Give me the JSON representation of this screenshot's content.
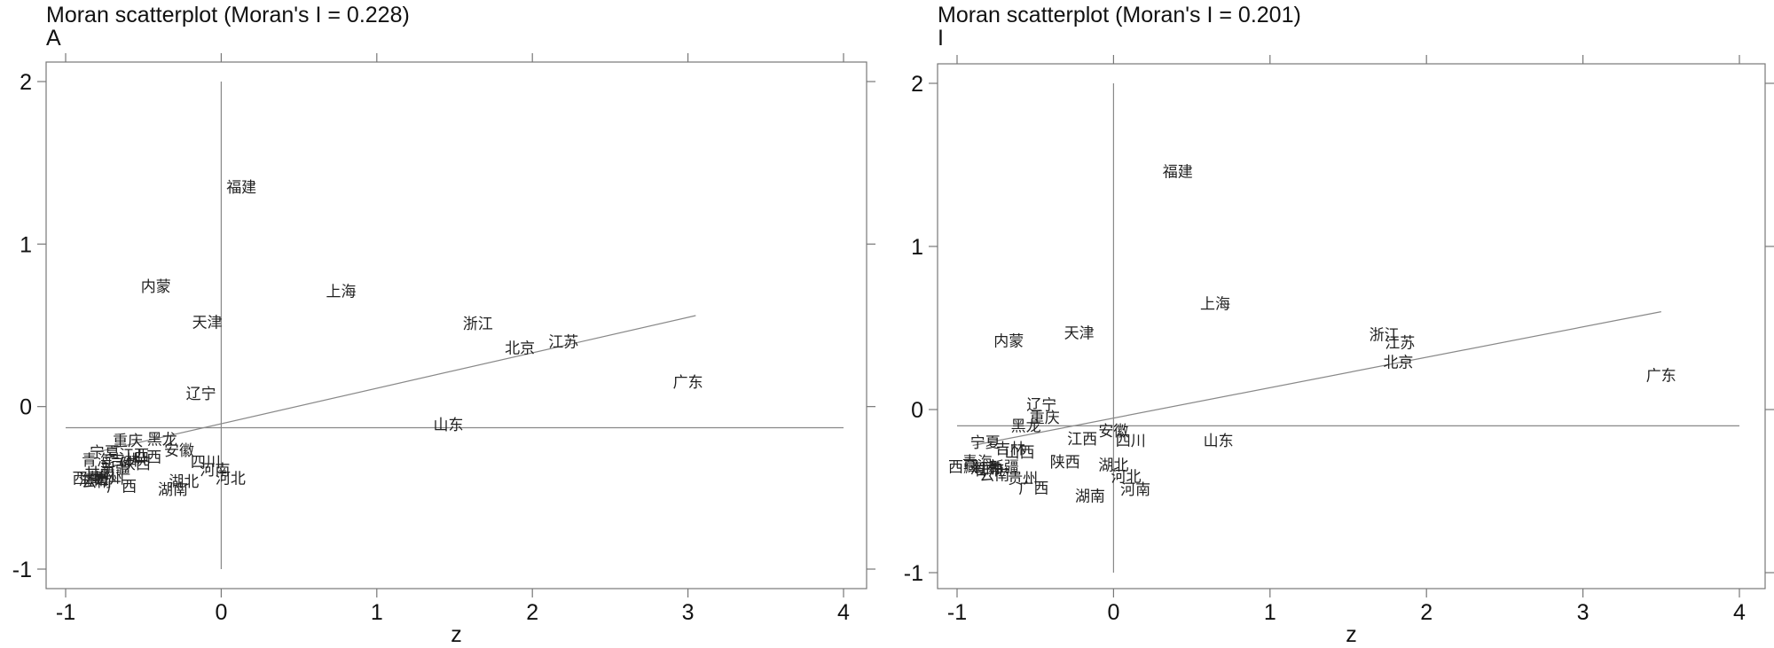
{
  "chart_data": [
    {
      "type": "scatter",
      "title": "Moran scatterplot (Moran's I = 0.228)",
      "subtitle": "A",
      "xlabel": "z",
      "ylabel": "",
      "xlim": [
        -1.1,
        4.1
      ],
      "ylim": [
        -1.1,
        2.1
      ],
      "xticks": [
        -1,
        0,
        1,
        2,
        3,
        4
      ],
      "yticks": [
        -1,
        0,
        1,
        2
      ],
      "grid": false,
      "reference_lines": {
        "x": 0,
        "y": -0.13
      },
      "fit_line": {
        "x": [
          -0.8,
          3.05
        ],
        "y": [
          -0.28,
          0.56
        ]
      },
      "points": [
        {
          "label": "福建",
          "x": 0.13,
          "y": 1.35
        },
        {
          "label": "内蒙",
          "x": -0.42,
          "y": 0.74
        },
        {
          "label": "上海",
          "x": 0.77,
          "y": 0.71
        },
        {
          "label": "天津",
          "x": -0.09,
          "y": 0.52
        },
        {
          "label": "浙江",
          "x": 1.65,
          "y": 0.51
        },
        {
          "label": "江苏",
          "x": 2.2,
          "y": 0.4
        },
        {
          "label": "北京",
          "x": 1.92,
          "y": 0.36
        },
        {
          "label": "广东",
          "x": 3.0,
          "y": 0.15
        },
        {
          "label": "辽宁",
          "x": -0.13,
          "y": 0.08
        },
        {
          "label": "山东",
          "x": 1.46,
          "y": -0.11
        },
        {
          "label": "重庆",
          "x": -0.6,
          "y": -0.21
        },
        {
          "label": "黑龙",
          "x": -0.38,
          "y": -0.2
        },
        {
          "label": "安徽",
          "x": -0.27,
          "y": -0.27
        },
        {
          "label": "四川",
          "x": -0.1,
          "y": -0.34
        },
        {
          "label": "河南",
          "x": -0.04,
          "y": -0.39
        },
        {
          "label": "河北",
          "x": 0.06,
          "y": -0.44
        },
        {
          "label": "湖北",
          "x": -0.24,
          "y": -0.46
        },
        {
          "label": "湖南",
          "x": -0.31,
          "y": -0.51
        },
        {
          "label": "宁夏",
          "x": -0.75,
          "y": -0.28
        },
        {
          "label": "青海",
          "x": -0.8,
          "y": -0.33
        },
        {
          "label": "山西",
          "x": -0.48,
          "y": -0.31
        },
        {
          "label": "吉林",
          "x": -0.62,
          "y": -0.33
        },
        {
          "label": "陕西",
          "x": -0.55,
          "y": -0.35
        },
        {
          "label": "新疆",
          "x": -0.68,
          "y": -0.38
        },
        {
          "label": "甘肃",
          "x": -0.78,
          "y": -0.41
        },
        {
          "label": "贵州",
          "x": -0.72,
          "y": -0.44
        },
        {
          "label": "云南",
          "x": -0.8,
          "y": -0.46
        },
        {
          "label": "广西",
          "x": -0.64,
          "y": -0.49
        },
        {
          "label": "海南",
          "x": -0.82,
          "y": -0.45
        },
        {
          "label": "西藏",
          "x": -0.86,
          "y": -0.44
        },
        {
          "label": "江西",
          "x": -0.56,
          "y": -0.3
        }
      ]
    },
    {
      "type": "scatter",
      "title": "Moran scatterplot (Moran's I = 0.201)",
      "subtitle": "I",
      "xlabel": "z",
      "ylabel": "",
      "xlim": [
        -1.1,
        4.1
      ],
      "ylim": [
        -1.1,
        2.1
      ],
      "xticks": [
        -1,
        0,
        1,
        2,
        3,
        4
      ],
      "yticks": [
        -1,
        0,
        1,
        2
      ],
      "grid": false,
      "reference_lines": {
        "x": 0,
        "y": -0.1
      },
      "fit_line": {
        "x": [
          -0.9,
          3.5
        ],
        "y": [
          -0.22,
          0.6
        ]
      },
      "points": [
        {
          "label": "福建",
          "x": 0.41,
          "y": 1.46
        },
        {
          "label": "上海",
          "x": 0.65,
          "y": 0.65
        },
        {
          "label": "天津",
          "x": -0.22,
          "y": 0.47
        },
        {
          "label": "内蒙",
          "x": -0.67,
          "y": 0.42
        },
        {
          "label": "浙江",
          "x": 1.73,
          "y": 0.46
        },
        {
          "label": "江苏",
          "x": 1.83,
          "y": 0.41
        },
        {
          "label": "北京",
          "x": 1.82,
          "y": 0.29
        },
        {
          "label": "广东",
          "x": 3.5,
          "y": 0.21
        },
        {
          "label": "辽宁",
          "x": -0.46,
          "y": 0.03
        },
        {
          "label": "重庆",
          "x": -0.44,
          "y": -0.05
        },
        {
          "label": "黑龙",
          "x": -0.56,
          "y": -0.1
        },
        {
          "label": "安徽",
          "x": 0.0,
          "y": -0.13
        },
        {
          "label": "江西",
          "x": -0.2,
          "y": -0.18
        },
        {
          "label": "四川",
          "x": 0.11,
          "y": -0.19
        },
        {
          "label": "山东",
          "x": 0.67,
          "y": -0.19
        },
        {
          "label": "宁夏",
          "x": -0.82,
          "y": -0.2
        },
        {
          "label": "吉林",
          "x": -0.66,
          "y": -0.24
        },
        {
          "label": "山西",
          "x": -0.6,
          "y": -0.26
        },
        {
          "label": "陕西",
          "x": -0.31,
          "y": -0.32
        },
        {
          "label": "湖北",
          "x": 0.0,
          "y": -0.34
        },
        {
          "label": "河北",
          "x": 0.08,
          "y": -0.41
        },
        {
          "label": "河南",
          "x": 0.14,
          "y": -0.49
        },
        {
          "label": "湖南",
          "x": -0.15,
          "y": -0.53
        },
        {
          "label": "新疆",
          "x": -0.7,
          "y": -0.35
        },
        {
          "label": "甘肃",
          "x": -0.8,
          "y": -0.37
        },
        {
          "label": "贵州",
          "x": -0.58,
          "y": -0.42
        },
        {
          "label": "广西",
          "x": -0.51,
          "y": -0.48
        },
        {
          "label": "西藏",
          "x": -0.96,
          "y": -0.35
        },
        {
          "label": "青海",
          "x": -0.87,
          "y": -0.32
        },
        {
          "label": "海南",
          "x": -0.82,
          "y": -0.36
        },
        {
          "label": "云南",
          "x": -0.76,
          "y": -0.4
        }
      ]
    }
  ]
}
